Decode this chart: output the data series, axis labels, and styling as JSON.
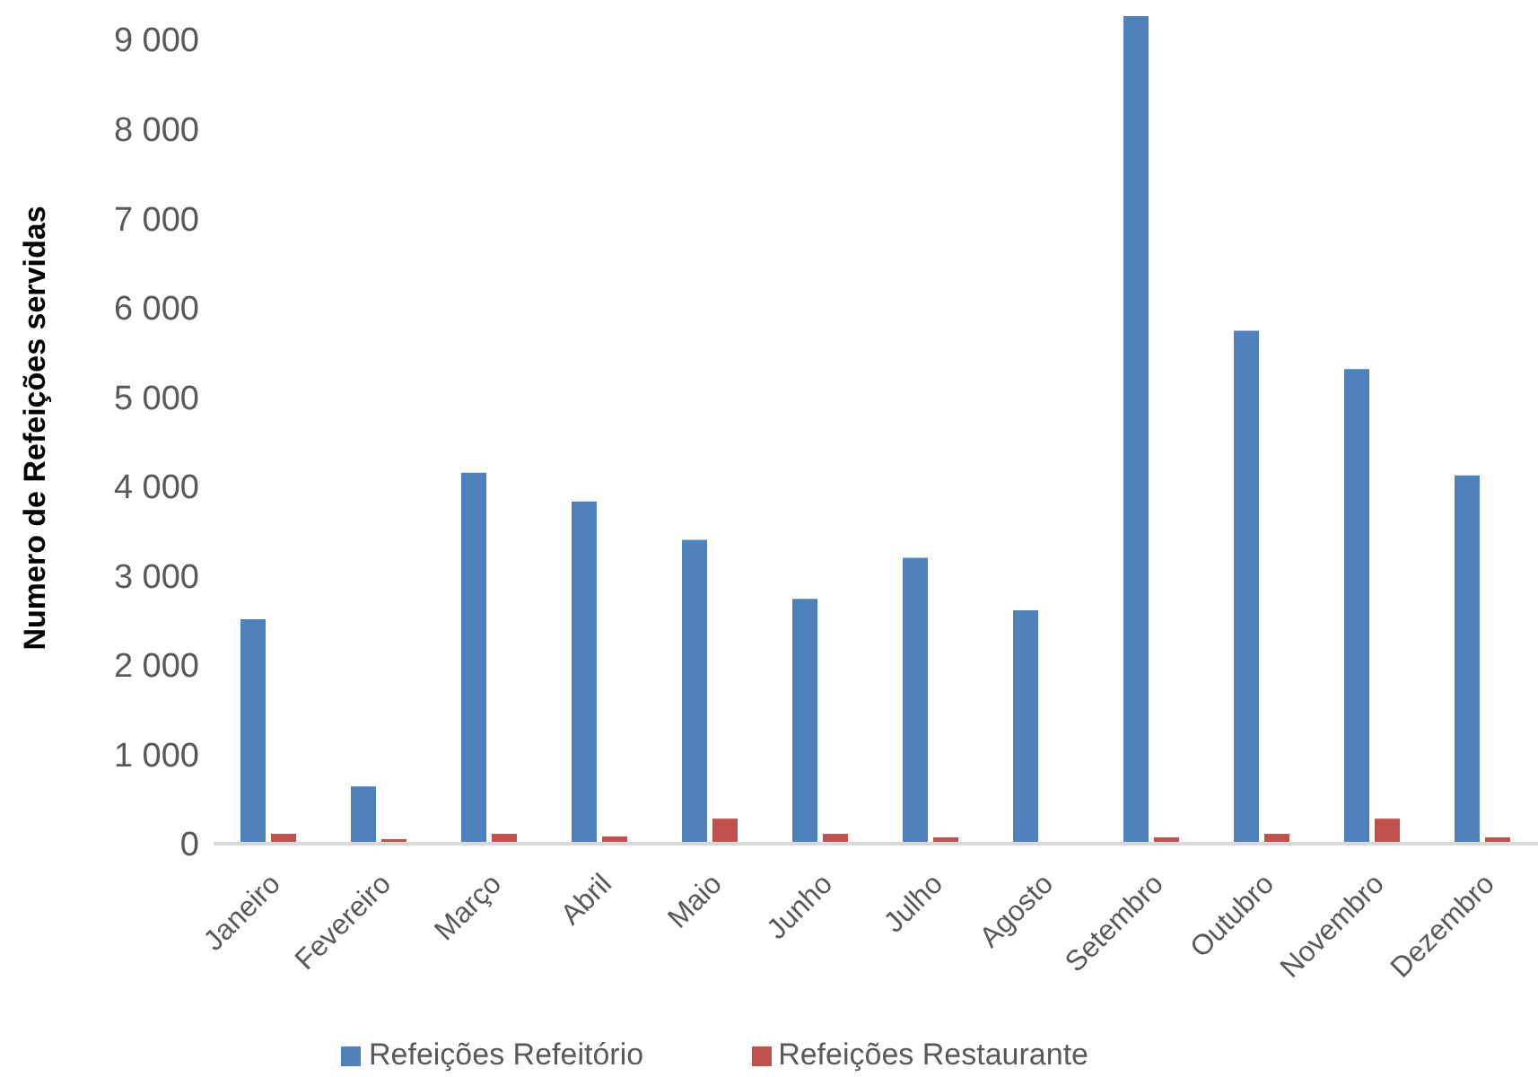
{
  "chart_data": {
    "type": "bar",
    "ylabel": "Numero de Refeições servidas",
    "categories": [
      "Janeiro",
      "Fevereiro",
      "Março",
      "Abril",
      "Maio",
      "Junho",
      "Julho",
      "Agosto",
      "Setembro",
      "Outubro",
      "Novembro",
      "Dezembro"
    ],
    "series": [
      {
        "name": "Refeições Refeitório",
        "color": "#4f81bd",
        "values": [
          2510,
          640,
          4150,
          3830,
          3400,
          2740,
          3200,
          2610,
          9260,
          5740,
          5310,
          4120
        ]
      },
      {
        "name": "Refeições Restaurante",
        "color": "#c0504d",
        "values": [
          110,
          50,
          110,
          80,
          280,
          110,
          70,
          0,
          70,
          110,
          280,
          70
        ]
      }
    ],
    "ylim": [
      0,
      9300
    ],
    "yticks": [
      {
        "value": 0,
        "label": "0"
      },
      {
        "value": 1000,
        "label": "1 000"
      },
      {
        "value": 2000,
        "label": "2 000"
      },
      {
        "value": 3000,
        "label": "3 000"
      },
      {
        "value": 4000,
        "label": "4 000"
      },
      {
        "value": 5000,
        "label": "5 000"
      },
      {
        "value": 6000,
        "label": "6 000"
      },
      {
        "value": 7000,
        "label": "7 000"
      },
      {
        "value": 8000,
        "label": "8 000"
      },
      {
        "value": 9000,
        "label": "9 000"
      }
    ],
    "grid": false,
    "legend": "bottom"
  }
}
